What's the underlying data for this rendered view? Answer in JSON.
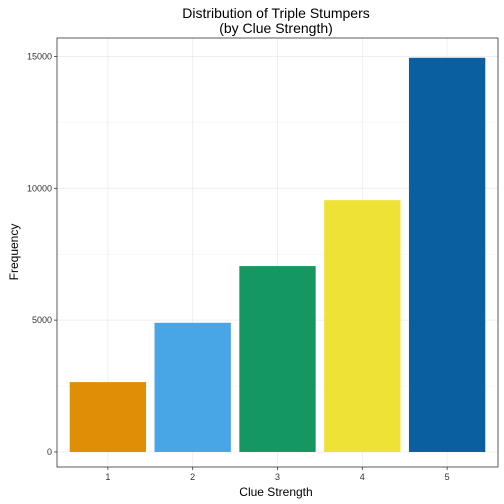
{
  "chart_data": {
    "type": "bar",
    "title": "Distribution of Triple Stumpers",
    "subtitle": "(by Clue Strength)",
    "xlabel": "Clue Strength",
    "ylabel": "Frequency",
    "categories": [
      "1",
      "2",
      "3",
      "4",
      "5"
    ],
    "values": [
      2650,
      4900,
      7050,
      9550,
      14950
    ],
    "colors": [
      "#E08E05",
      "#48A6E6",
      "#159762",
      "#EFE236",
      "#0A5FA0"
    ],
    "ylim": [
      -570,
      15700
    ],
    "yticks": [
      0,
      5000,
      10000,
      15000
    ],
    "ytick_labels": [
      "0",
      "5000",
      "10000",
      "15000"
    ],
    "grid": true,
    "legend": "none"
  }
}
